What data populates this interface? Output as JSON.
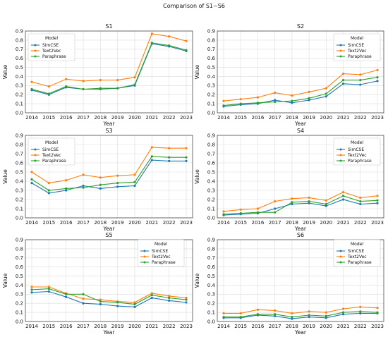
{
  "title": "Comparison of S1~S6",
  "chart_data": [
    {
      "type": "line",
      "title": "S1",
      "xlabel": "Year",
      "ylabel": "Value",
      "x": [
        "2014",
        "2015",
        "2016",
        "2017",
        "2018",
        "2019",
        "2020",
        "2021",
        "2022",
        "2023"
      ],
      "ylim": [
        0,
        0.9
      ],
      "yticks": [
        "0.0",
        "0.1",
        "0.2",
        "0.3",
        "0.4",
        "0.5",
        "0.6",
        "0.7",
        "0.8",
        "0.9"
      ],
      "grid": true,
      "legend_title": "Model",
      "legend_position": "top-left",
      "series": [
        {
          "name": "SimCSE",
          "color": "#1f77b4",
          "values": [
            0.25,
            0.2,
            0.28,
            0.26,
            0.26,
            0.27,
            0.3,
            0.76,
            0.73,
            0.68
          ]
        },
        {
          "name": "Text2Vec",
          "color": "#ff7f0e",
          "values": [
            0.34,
            0.29,
            0.37,
            0.35,
            0.36,
            0.36,
            0.39,
            0.87,
            0.84,
            0.79
          ]
        },
        {
          "name": "Paraphrase",
          "color": "#2ca02c",
          "values": [
            0.26,
            0.21,
            0.29,
            0.26,
            0.27,
            0.27,
            0.31,
            0.77,
            0.74,
            0.69
          ]
        }
      ]
    },
    {
      "type": "line",
      "title": "S2",
      "xlabel": "Year",
      "ylabel": "Value",
      "x": [
        "2014",
        "2015",
        "2016",
        "2017",
        "2018",
        "2019",
        "2020",
        "2021",
        "2022",
        "2023"
      ],
      "ylim": [
        0,
        0.9
      ],
      "yticks": [
        "0.0",
        "0.1",
        "0.2",
        "0.3",
        "0.4",
        "0.5",
        "0.6",
        "0.7",
        "0.8",
        "0.9"
      ],
      "grid": true,
      "legend_title": "Model",
      "legend_position": "top-right",
      "series": [
        {
          "name": "SimCSE",
          "color": "#1f77b4",
          "values": [
            0.07,
            0.09,
            0.1,
            0.14,
            0.11,
            0.14,
            0.18,
            0.32,
            0.31,
            0.35
          ]
        },
        {
          "name": "Text2Vec",
          "color": "#ff7f0e",
          "values": [
            0.13,
            0.15,
            0.17,
            0.22,
            0.19,
            0.23,
            0.27,
            0.43,
            0.42,
            0.47
          ]
        },
        {
          "name": "Paraphrase",
          "color": "#2ca02c",
          "values": [
            0.08,
            0.1,
            0.11,
            0.12,
            0.13,
            0.16,
            0.21,
            0.36,
            0.36,
            0.39
          ]
        }
      ]
    },
    {
      "type": "line",
      "title": "S3",
      "xlabel": "Year",
      "ylabel": "Value",
      "x": [
        "2014",
        "2015",
        "2016",
        "2017",
        "2018",
        "2019",
        "2020",
        "2021",
        "2022",
        "2023"
      ],
      "ylim": [
        0,
        0.9
      ],
      "yticks": [
        "0.0",
        "0.1",
        "0.2",
        "0.3",
        "0.4",
        "0.5",
        "0.6",
        "0.7",
        "0.8",
        "0.9"
      ],
      "grid": true,
      "legend_title": "Model",
      "legend_position": "top-left",
      "series": [
        {
          "name": "SimCSE",
          "color": "#1f77b4",
          "values": [
            0.38,
            0.27,
            0.3,
            0.35,
            0.32,
            0.34,
            0.35,
            0.63,
            0.62,
            0.62
          ]
        },
        {
          "name": "Text2Vec",
          "color": "#ff7f0e",
          "values": [
            0.5,
            0.38,
            0.41,
            0.47,
            0.44,
            0.46,
            0.47,
            0.77,
            0.76,
            0.76
          ]
        },
        {
          "name": "Paraphrase",
          "color": "#2ca02c",
          "values": [
            0.42,
            0.3,
            0.32,
            0.33,
            0.36,
            0.38,
            0.39,
            0.67,
            0.66,
            0.66
          ]
        }
      ]
    },
    {
      "type": "line",
      "title": "S4",
      "xlabel": "Year",
      "ylabel": "Value",
      "x": [
        "2014",
        "2015",
        "2016",
        "2017",
        "2018",
        "2019",
        "2020",
        "2021",
        "2022",
        "2023"
      ],
      "ylim": [
        0,
        0.9
      ],
      "yticks": [
        "0.0",
        "0.1",
        "0.2",
        "0.3",
        "0.4",
        "0.5",
        "0.6",
        "0.7",
        "0.8",
        "0.9"
      ],
      "grid": true,
      "legend_title": "Model",
      "legend_position": "top-right",
      "series": [
        {
          "name": "SimCSE",
          "color": "#1f77b4",
          "values": [
            0.03,
            0.04,
            0.05,
            0.1,
            0.15,
            0.16,
            0.13,
            0.2,
            0.15,
            0.16
          ]
        },
        {
          "name": "Text2Vec",
          "color": "#ff7f0e",
          "values": [
            0.07,
            0.09,
            0.1,
            0.18,
            0.21,
            0.22,
            0.19,
            0.28,
            0.22,
            0.24
          ]
        },
        {
          "name": "Paraphrase",
          "color": "#2ca02c",
          "values": [
            0.04,
            0.05,
            0.06,
            0.06,
            0.17,
            0.18,
            0.15,
            0.24,
            0.18,
            0.19
          ]
        }
      ]
    },
    {
      "type": "line",
      "title": "S5",
      "xlabel": "Year",
      "ylabel": "Value",
      "x": [
        "2014",
        "2015",
        "2016",
        "2017",
        "2018",
        "2019",
        "2020",
        "2021",
        "2022",
        "2023"
      ],
      "ylim": [
        0,
        0.9
      ],
      "yticks": [
        "0.0",
        "0.1",
        "0.2",
        "0.3",
        "0.4",
        "0.5",
        "0.6",
        "0.7",
        "0.8",
        "0.9"
      ],
      "grid": true,
      "legend_title": "Model",
      "legend_position": "upper-right",
      "series": [
        {
          "name": "SimCSE",
          "color": "#1f77b4",
          "values": [
            0.32,
            0.33,
            0.27,
            0.2,
            0.19,
            0.17,
            0.16,
            0.26,
            0.23,
            0.21
          ]
        },
        {
          "name": "Text2Vec",
          "color": "#ff7f0e",
          "values": [
            0.38,
            0.38,
            0.31,
            0.25,
            0.24,
            0.22,
            0.21,
            0.31,
            0.28,
            0.26
          ]
        },
        {
          "name": "Paraphrase",
          "color": "#2ca02c",
          "values": [
            0.35,
            0.36,
            0.3,
            0.3,
            0.22,
            0.21,
            0.19,
            0.29,
            0.26,
            0.24
          ]
        }
      ]
    },
    {
      "type": "line",
      "title": "S6",
      "xlabel": "Year",
      "ylabel": "Value",
      "x": [
        "2014",
        "2015",
        "2016",
        "2017",
        "2018",
        "2019",
        "2020",
        "2021",
        "2022",
        "2023"
      ],
      "ylim": [
        0,
        0.9
      ],
      "yticks": [
        "0.0",
        "0.1",
        "0.2",
        "0.3",
        "0.4",
        "0.5",
        "0.6",
        "0.7",
        "0.8",
        "0.9"
      ],
      "grid": true,
      "legend_title": "Model",
      "legend_position": "upper-right",
      "series": [
        {
          "name": "SimCSE",
          "color": "#1f77b4",
          "values": [
            0.04,
            0.04,
            0.07,
            0.06,
            0.03,
            0.05,
            0.04,
            0.08,
            0.09,
            0.09
          ]
        },
        {
          "name": "Text2Vec",
          "color": "#ff7f0e",
          "values": [
            0.09,
            0.09,
            0.13,
            0.12,
            0.09,
            0.11,
            0.1,
            0.14,
            0.16,
            0.15
          ]
        },
        {
          "name": "Paraphrase",
          "color": "#2ca02c",
          "values": [
            0.05,
            0.05,
            0.08,
            0.08,
            0.05,
            0.07,
            0.06,
            0.1,
            0.11,
            0.1
          ]
        }
      ]
    }
  ]
}
